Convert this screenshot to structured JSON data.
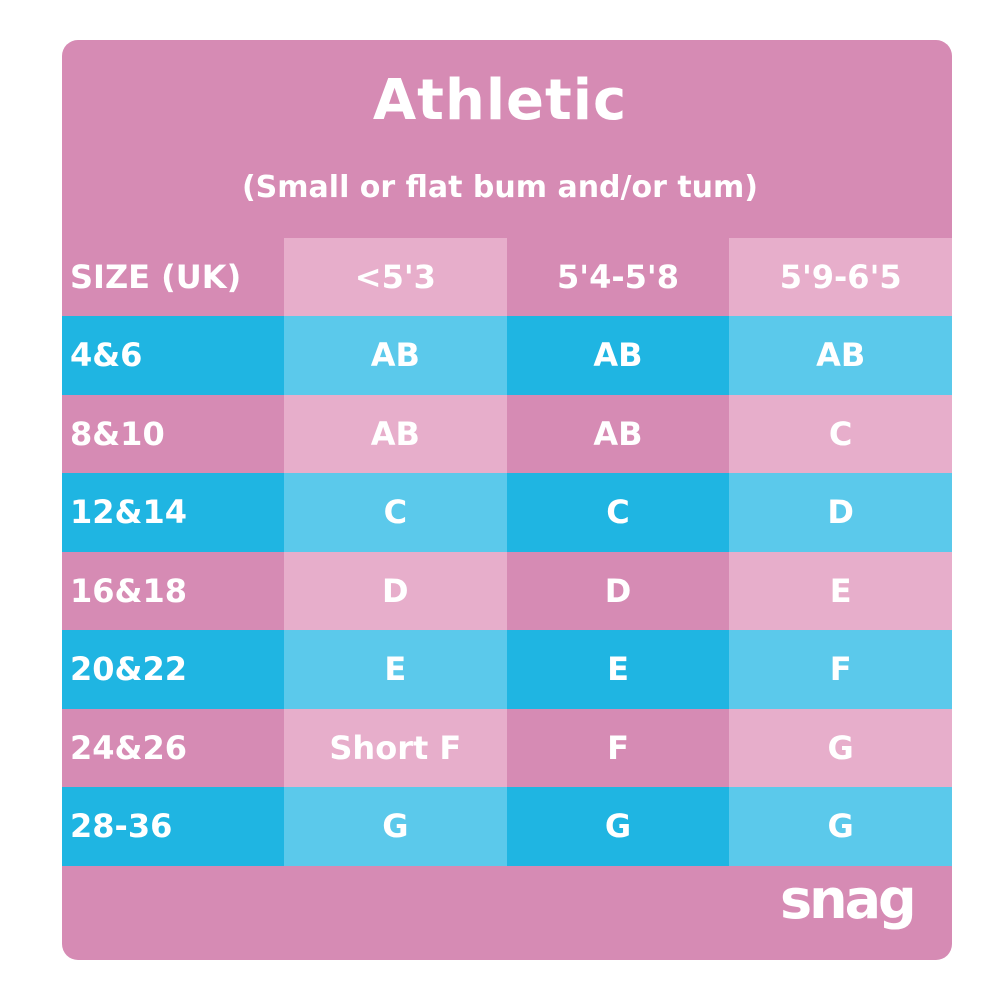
{
  "title": "Athletic",
  "subtitle": "(Small or flat bum and/or tum)",
  "colors": {
    "pink_dark": "#d68bb4",
    "pink_light": "#e7aecb",
    "blue_dark": "#1fb5e2",
    "blue_light": "#5bc9eb"
  },
  "table": {
    "headers": [
      "SIZE (UK)",
      "<5'3",
      "5'4-5'8",
      "5'9-6'5"
    ],
    "rows": [
      [
        "4&6",
        "AB",
        "AB",
        "AB"
      ],
      [
        "8&10",
        "AB",
        "AB",
        "C"
      ],
      [
        "12&14",
        "C",
        "C",
        "D"
      ],
      [
        "16&18",
        "D",
        "D",
        "E"
      ],
      [
        "20&22",
        "E",
        "E",
        "F"
      ],
      [
        "24&26",
        "Short F",
        "F",
        "G"
      ],
      [
        "28-36",
        "G",
        "G",
        "G"
      ]
    ]
  },
  "logo_text": "snag"
}
